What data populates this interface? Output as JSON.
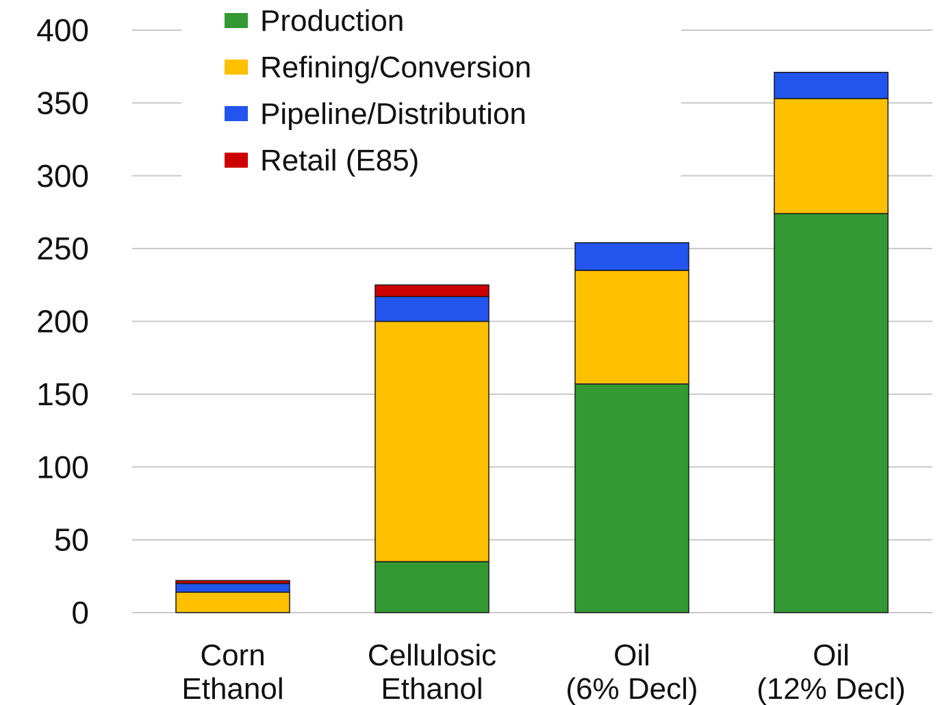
{
  "chart_data": {
    "type": "bar",
    "stacked": true,
    "categories": [
      [
        "Corn",
        "Ethanol"
      ],
      [
        "Cellulosic",
        "Ethanol"
      ],
      [
        "Oil",
        "(6% Decl)"
      ],
      [
        "Oil",
        "(12% Decl)"
      ]
    ],
    "series": [
      {
        "name": "Production",
        "color": "#339933",
        "values": [
          0,
          35,
          157,
          274
        ]
      },
      {
        "name": "Refining/Conversion",
        "color": "#ffc000",
        "values": [
          14,
          165,
          78,
          79
        ]
      },
      {
        "name": "Pipeline/Distribution",
        "color": "#2255ee",
        "values": [
          6,
          17,
          19,
          18
        ]
      },
      {
        "name": "Retail  (E85)",
        "color": "#cc0000",
        "values": [
          2,
          8,
          0,
          0
        ]
      }
    ],
    "title": "",
    "xlabel": "",
    "ylabel": "",
    "ylim": [
      0,
      400
    ],
    "yticks": [
      0,
      50,
      100,
      150,
      200,
      250,
      300,
      350,
      400
    ],
    "grid": true,
    "legend_position": "top-left"
  }
}
